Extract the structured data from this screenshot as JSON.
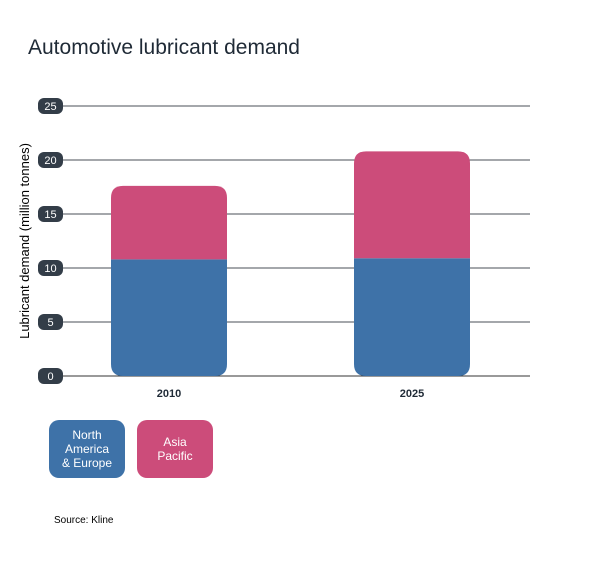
{
  "chart_data": {
    "type": "bar",
    "stacked": true,
    "title": "Automotive lubricant demand",
    "ylabel": "Lubricant demand (million tonnes)",
    "xlabel": "",
    "categories": [
      "2010",
      "2025"
    ],
    "series": [
      {
        "name": "North\nAmerica\n& Europe",
        "color": "#3e72a8",
        "values": [
          10.8,
          10.9
        ]
      },
      {
        "name": "Asia\nPacific",
        "color": "#cc4c7a",
        "values": [
          6.8,
          9.9
        ]
      }
    ],
    "ylim": [
      0,
      25
    ],
    "yticks": [
      "0",
      "5",
      "10",
      "15",
      "20",
      "25"
    ],
    "grid": true,
    "legend_position": "bottom-left",
    "source": "Source: Kline"
  }
}
